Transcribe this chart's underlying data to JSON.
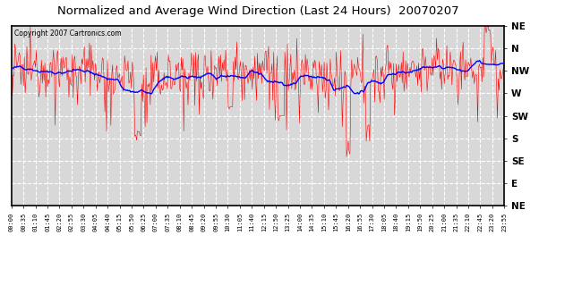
{
  "title": "Normalized and Average Wind Direction (Last 24 Hours)  20070207",
  "copyright_text": "Copyright 2007 Cartronics.com",
  "background_color": "#ffffff",
  "plot_bg_color": "#d8d8d8",
  "grid_color": "#ffffff",
  "red_line_color": "#ff0000",
  "blue_line_color": "#0000ff",
  "ytick_labels": [
    "NE",
    "N",
    "NW",
    "W",
    "SW",
    "S",
    "SE",
    "E",
    "NE"
  ],
  "ytick_values": [
    1.0,
    0.875,
    0.75,
    0.625,
    0.5,
    0.375,
    0.25,
    0.125,
    0.0
  ],
  "xtick_labels": [
    "00:00",
    "00:35",
    "01:10",
    "01:45",
    "02:20",
    "02:55",
    "03:30",
    "04:05",
    "04:40",
    "05:15",
    "05:50",
    "06:25",
    "07:00",
    "07:35",
    "08:10",
    "08:45",
    "09:20",
    "09:55",
    "10:30",
    "11:05",
    "11:40",
    "12:15",
    "12:50",
    "13:25",
    "14:00",
    "14:35",
    "15:10",
    "15:45",
    "16:20",
    "16:55",
    "17:30",
    "18:05",
    "18:40",
    "19:15",
    "19:50",
    "20:25",
    "21:00",
    "21:35",
    "22:10",
    "22:45",
    "23:20",
    "23:55"
  ],
  "num_points": 576,
  "seed": 12345,
  "nw_level": 0.75,
  "noise_std": 0.07
}
